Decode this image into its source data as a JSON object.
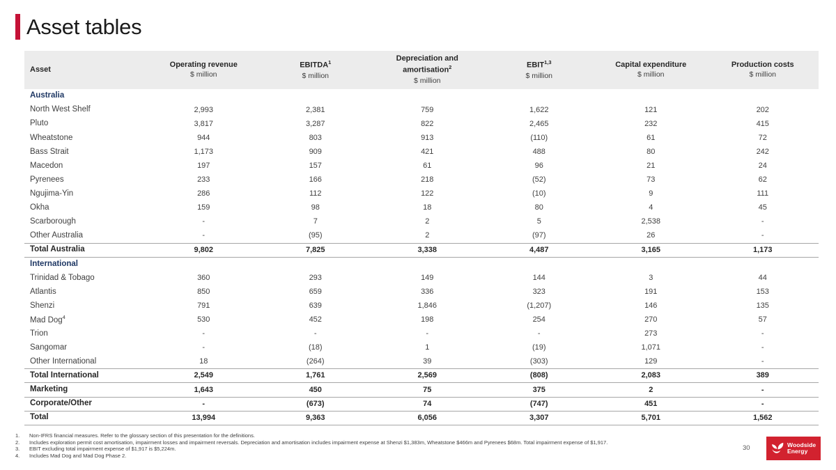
{
  "page": {
    "title": "Asset tables",
    "page_number": "30"
  },
  "logo": {
    "line1": "Woodside",
    "line2": "Energy",
    "icon": "woodside-flower-icon",
    "background_color": "#d2222f"
  },
  "colors": {
    "accent_red": "#c51237",
    "section_navy": "#1f3864",
    "header_band": "#ececec",
    "rule_gray": "#a6a6a6"
  },
  "table": {
    "columns": [
      {
        "key": "asset",
        "label": "Asset",
        "sup": "",
        "unit": ""
      },
      {
        "key": "operating-revenue",
        "label": "Operating revenue",
        "sup": "",
        "unit": "$ million"
      },
      {
        "key": "ebitda",
        "label": "EBITDA",
        "sup": "1",
        "unit": "$ million"
      },
      {
        "key": "depreciation-amortisation",
        "label": "Depreciation and amortisation",
        "sup": "2",
        "unit": "$ million"
      },
      {
        "key": "ebit",
        "label": "EBIT",
        "sup": "1,3",
        "unit": "$ million"
      },
      {
        "key": "capital-expenditure",
        "label": "Capital expenditure",
        "sup": "",
        "unit": "$ million"
      },
      {
        "key": "production-costs",
        "label": "Production costs",
        "sup": "",
        "unit": "$ million"
      }
    ],
    "rows": [
      {
        "type": "section",
        "label": "Australia"
      },
      {
        "type": "data",
        "label": "North West Shelf",
        "values": [
          "2,993",
          "2,381",
          "759",
          "1,622",
          "121",
          "202"
        ]
      },
      {
        "type": "data",
        "label": "Pluto",
        "values": [
          "3,817",
          "3,287",
          "822",
          "2,465",
          "232",
          "415"
        ]
      },
      {
        "type": "data",
        "label": "Wheatstone",
        "values": [
          "944",
          "803",
          "913",
          "(110)",
          "61",
          "72"
        ]
      },
      {
        "type": "data",
        "label": "Bass Strait",
        "values": [
          "1,173",
          "909",
          "421",
          "488",
          "80",
          "242"
        ]
      },
      {
        "type": "data",
        "label": "Macedon",
        "values": [
          "197",
          "157",
          "61",
          "96",
          "21",
          "24"
        ]
      },
      {
        "type": "data",
        "label": "Pyrenees",
        "values": [
          "233",
          "166",
          "218",
          "(52)",
          "73",
          "62"
        ]
      },
      {
        "type": "data",
        "label": "Ngujima-Yin",
        "values": [
          "286",
          "112",
          "122",
          "(10)",
          "9",
          "111"
        ]
      },
      {
        "type": "data",
        "label": "Okha",
        "values": [
          "159",
          "98",
          "18",
          "80",
          "4",
          "45"
        ]
      },
      {
        "type": "data",
        "label": "Scarborough",
        "values": [
          "-",
          "7",
          "2",
          "5",
          "2,538",
          "-"
        ]
      },
      {
        "type": "data",
        "label": "Other Australia",
        "values": [
          "-",
          "(95)",
          "2",
          "(97)",
          "26",
          "-"
        ]
      },
      {
        "type": "total",
        "label": "Total Australia",
        "rule_top": true,
        "rule_bottom": true,
        "values": [
          "9,802",
          "7,825",
          "3,338",
          "4,487",
          "3,165",
          "1,173"
        ]
      },
      {
        "type": "section",
        "label": "International"
      },
      {
        "type": "data",
        "label": "Trinidad & Tobago",
        "values": [
          "360",
          "293",
          "149",
          "144",
          "3",
          "44"
        ]
      },
      {
        "type": "data",
        "label": "Atlantis",
        "values": [
          "850",
          "659",
          "336",
          "323",
          "191",
          "153"
        ]
      },
      {
        "type": "data",
        "label": "Shenzi",
        "values": [
          "791",
          "639",
          "1,846",
          "(1,207)",
          "146",
          "135"
        ]
      },
      {
        "type": "data",
        "label": "Mad Dog",
        "sup": "4",
        "values": [
          "530",
          "452",
          "198",
          "254",
          "270",
          "57"
        ]
      },
      {
        "type": "data",
        "label": "Trion",
        "values": [
          "-",
          "-",
          "-",
          "-",
          "273",
          "-"
        ]
      },
      {
        "type": "data",
        "label": "Sangomar",
        "values": [
          "-",
          "(18)",
          "1",
          "(19)",
          "1,071",
          "-"
        ]
      },
      {
        "type": "data",
        "label": "Other International",
        "values": [
          "18",
          "(264)",
          "39",
          "(303)",
          "129",
          "-"
        ]
      },
      {
        "type": "total",
        "label": "Total International",
        "rule_top": true,
        "rule_bottom": true,
        "values": [
          "2,549",
          "1,761",
          "2,569",
          "(808)",
          "2,083",
          "389"
        ]
      },
      {
        "type": "total",
        "label": "Marketing",
        "rule_bottom": true,
        "values": [
          "1,643",
          "450",
          "75",
          "375",
          "2",
          "-"
        ]
      },
      {
        "type": "total",
        "label": "Corporate/Other",
        "rule_bottom": true,
        "values": [
          "-",
          "(673)",
          "74",
          "(747)",
          "451",
          "-"
        ]
      },
      {
        "type": "total",
        "label": "Total",
        "rule_bottom": true,
        "values": [
          "13,994",
          "9,363",
          "6,056",
          "3,307",
          "5,701",
          "1,562"
        ]
      }
    ]
  },
  "footnotes": [
    {
      "num": "1.",
      "text": "Non-IFRS financial measures. Refer to the glossary section of this presentation for the definitions."
    },
    {
      "num": "2.",
      "text": "Includes exploration permit cost amortisation, impairment losses and impairment reversals. Depreciation and amortisation includes impairment expense at Shenzi $1,383m, Wheatstone $466m and Pyrenees $68m. Total impairment expense of $1,917."
    },
    {
      "num": "3.",
      "text": "EBIT excluding total impairment expense of $1,917 is $5,224m."
    },
    {
      "num": "4.",
      "text": "Includes Mad Dog and Mad Dog Phase 2."
    }
  ]
}
